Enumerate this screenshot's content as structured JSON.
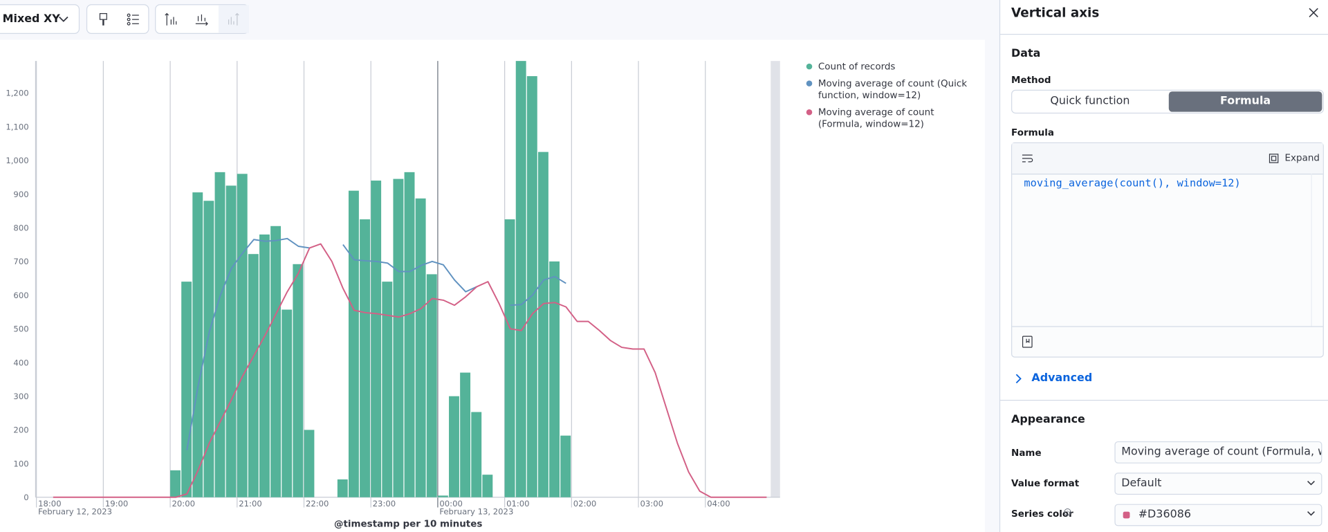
{
  "toolbar": {
    "chart_type": "Mixed XY"
  },
  "chart_data": {
    "type": "bar",
    "x_title": "@timestamp per 10 minutes",
    "x": [
      "2023-02-12 18:00",
      "2023-02-12 18:10",
      "2023-02-12 18:20",
      "2023-02-12 18:30",
      "2023-02-12 18:40",
      "2023-02-12 18:50",
      "2023-02-12 19:00",
      "2023-02-12 19:10",
      "2023-02-12 19:20",
      "2023-02-12 19:30",
      "2023-02-12 19:40",
      "2023-02-12 19:50",
      "2023-02-12 20:00",
      "2023-02-12 20:10",
      "2023-02-12 20:20",
      "2023-02-12 20:30",
      "2023-02-12 20:40",
      "2023-02-12 20:50",
      "2023-02-12 21:00",
      "2023-02-12 21:10",
      "2023-02-12 21:20",
      "2023-02-12 21:30",
      "2023-02-12 21:40",
      "2023-02-12 21:50",
      "2023-02-12 22:00",
      "2023-02-12 22:10",
      "2023-02-12 22:20",
      "2023-02-12 22:30",
      "2023-02-12 22:40",
      "2023-02-12 22:50",
      "2023-02-12 23:00",
      "2023-02-12 23:10",
      "2023-02-12 23:20",
      "2023-02-12 23:30",
      "2023-02-12 23:40",
      "2023-02-12 23:50",
      "2023-02-13 00:00",
      "2023-02-13 00:10",
      "2023-02-13 00:20",
      "2023-02-13 00:30",
      "2023-02-13 00:40",
      "2023-02-13 00:50",
      "2023-02-13 01:00",
      "2023-02-13 01:10",
      "2023-02-13 01:20",
      "2023-02-13 01:30",
      "2023-02-13 01:40",
      "2023-02-13 01:50",
      "2023-02-13 02:00",
      "2023-02-13 02:10",
      "2023-02-13 02:20",
      "2023-02-13 02:30",
      "2023-02-13 02:40",
      "2023-02-13 02:50",
      "2023-02-13 03:00",
      "2023-02-13 03:10",
      "2023-02-13 03:20",
      "2023-02-13 03:30",
      "2023-02-13 03:40",
      "2023-02-13 03:50",
      "2023-02-13 04:00",
      "2023-02-13 04:10",
      "2023-02-13 04:20",
      "2023-02-13 04:30",
      "2023-02-13 04:40",
      "2023-02-13 04:50"
    ],
    "xlim": [
      "2023-02-12 18:00",
      "2023-02-13 05:07"
    ],
    "xticks": [
      {
        "value": "2023-02-12 18:00",
        "label": "18:00"
      },
      {
        "value": "2023-02-12 19:00",
        "label": "19:00"
      },
      {
        "value": "2023-02-12 20:00",
        "label": "20:00"
      },
      {
        "value": "2023-02-12 21:00",
        "label": "21:00"
      },
      {
        "value": "2023-02-12 22:00",
        "label": "22:00"
      },
      {
        "value": "2023-02-12 23:00",
        "label": "23:00"
      },
      {
        "value": "2023-02-13 00:00",
        "label": "00:00"
      },
      {
        "value": "2023-02-13 01:00",
        "label": "01:00"
      },
      {
        "value": "2023-02-13 02:00",
        "label": "02:00"
      },
      {
        "value": "2023-02-13 03:00",
        "label": "03:00"
      },
      {
        "value": "2023-02-13 04:00",
        "label": "04:00"
      }
    ],
    "date_ticks": [
      {
        "value": "2023-02-12 18:00",
        "label": "February 12, 2023"
      },
      {
        "value": "2023-02-13 00:00",
        "label": "February 13, 2023"
      }
    ],
    "ylim": [
      0,
      1295
    ],
    "yticks": [
      0,
      100,
      200,
      300,
      400,
      500,
      600,
      700,
      800,
      900,
      {
        "value": 1000,
        "label": "1,000"
      },
      {
        "value": 1100,
        "label": "1,100"
      },
      {
        "value": 1200,
        "label": "1,200"
      }
    ],
    "xgrid": true,
    "ygrid": false,
    "series": [
      {
        "name": "Count of records",
        "type": "bar",
        "color": "#54B399",
        "values": [
          null,
          null,
          null,
          null,
          null,
          null,
          null,
          null,
          null,
          null,
          null,
          null,
          80,
          640,
          905,
          880,
          965,
          925,
          960,
          722,
          780,
          805,
          557,
          692,
          200,
          null,
          null,
          53,
          910,
          825,
          940,
          640,
          945,
          965,
          887,
          662,
          5,
          300,
          370,
          253,
          67,
          null,
          825,
          1300,
          1250,
          1025,
          700,
          183,
          null,
          null,
          null,
          null,
          null,
          null,
          null,
          null,
          null,
          null,
          null,
          null,
          null,
          null,
          null,
          null,
          null,
          null
        ]
      },
      {
        "name": "Moving average of count (Quick function, window=12)",
        "type": "line",
        "color": "#6092C0",
        "values": [
          null,
          null,
          null,
          null,
          null,
          null,
          null,
          null,
          null,
          null,
          null,
          null,
          null,
          140,
          330,
          490,
          600,
          680,
          725,
          765,
          760,
          762,
          768,
          745,
          740,
          null,
          null,
          750,
          705,
          702,
          700,
          695,
          670,
          670,
          688,
          700,
          690,
          645,
          610,
          625,
          null,
          null,
          570,
          572,
          600,
          645,
          655,
          635,
          null,
          null,
          null,
          null,
          null,
          null,
          null,
          null,
          null,
          null,
          null,
          null,
          null,
          null,
          null,
          null,
          null,
          null
        ]
      },
      {
        "name": "Moving average of count (Formula, window=12)",
        "type": "line",
        "color": "#D36086",
        "values": [
          null,
          0,
          0,
          0,
          0,
          0,
          0,
          0,
          0,
          0,
          0,
          0,
          0,
          10,
          80,
          160,
          225,
          290,
          360,
          420,
          480,
          545,
          610,
          665,
          740,
          752,
          700,
          620,
          555,
          548,
          545,
          540,
          535,
          545,
          560,
          590,
          585,
          570,
          595,
          625,
          640,
          575,
          500,
          495,
          545,
          575,
          578,
          565,
          522,
          522,
          495,
          465,
          445,
          440,
          440,
          370,
          265,
          160,
          75,
          18,
          0,
          0,
          0,
          0,
          0,
          0
        ]
      }
    ]
  },
  "panel": {
    "title": "Vertical axis",
    "data_heading": "Data",
    "method_label": "Method",
    "method_options": [
      "Quick function",
      "Formula"
    ],
    "formula_label": "Formula",
    "expand": "Expand",
    "formula": "moving_average(count(), window=12)",
    "advanced": "Advanced",
    "appearance_heading": "Appearance",
    "name_label": "Name",
    "name_value": "Moving average of count (Formula, win",
    "value_format_label": "Value format",
    "value_format": "Default",
    "series_color_label": "Series color",
    "series_color": "#D36086"
  }
}
